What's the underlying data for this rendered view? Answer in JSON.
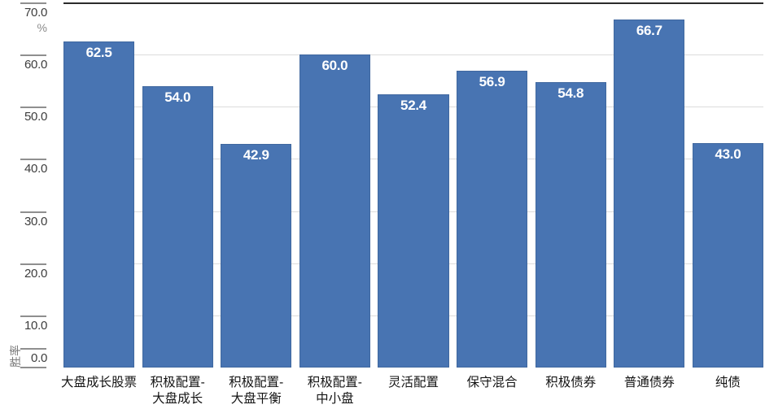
{
  "chart_data": {
    "type": "bar",
    "title": "",
    "categories": [
      "大盘成长股票",
      "积极配置-大盘成长",
      "积极配置-大盘平衡",
      "积极配置-中小盘",
      "灵活配置",
      "保守混合",
      "积极债券",
      "普通债券",
      "纯债"
    ],
    "category_lines": [
      [
        "大盘成长股票"
      ],
      [
        "积极配置-",
        "大盘成长"
      ],
      [
        "积极配置-",
        "大盘平衡"
      ],
      [
        "积极配置-",
        "中小盘"
      ],
      [
        "灵活配置"
      ],
      [
        "保守混合"
      ],
      [
        "积极债券"
      ],
      [
        "普通债券"
      ],
      [
        "纯债"
      ]
    ],
    "values": [
      62.5,
      54.0,
      42.9,
      60.0,
      52.4,
      56.9,
      54.8,
      66.7,
      43.0
    ],
    "value_labels": [
      "62.5",
      "54.0",
      "42.9",
      "60.0",
      "52.4",
      "56.9",
      "54.8",
      "66.7",
      "43.0"
    ],
    "ylabel": "胜率",
    "y_unit": "%",
    "ylim": [
      0,
      70
    ],
    "ytick_step": 10,
    "ytick_labels": [
      "0.0",
      "10.0",
      "20.0",
      "30.0",
      "40.0",
      "50.0",
      "60.0",
      "70.0"
    ],
    "grid": true,
    "legend": false,
    "xlabel": "",
    "colors": {
      "bar": "#4874B2",
      "gridline": "#DCDCDC",
      "axis_top_line": "#2B2B2B",
      "tick": "#8F8F8F",
      "tick_label": "#3D3D3D",
      "unit_label": "#8A8A8A",
      "category_label": "#141414",
      "value_label": "#FFFFFF"
    }
  }
}
